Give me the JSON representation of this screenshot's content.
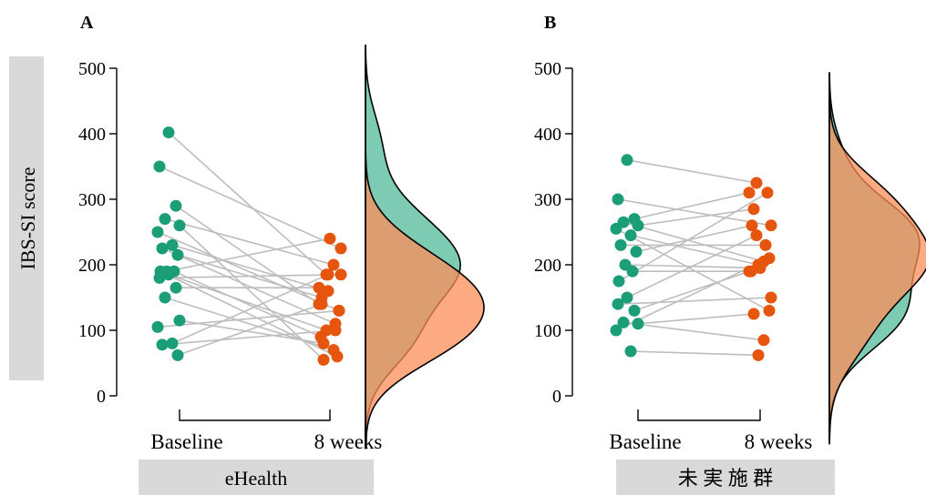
{
  "colors": {
    "baseline": "#1b9e77",
    "week8": "#e6550d",
    "line": "#bdbdbd",
    "density_baseline": "#66c2a5",
    "density_week8": "#fc8d59",
    "label_box": "#d9d9d9"
  },
  "ylabel": "IBS-SI score",
  "chart_data": [
    {
      "type": "scatter",
      "panel": "A",
      "group": "eHealth",
      "categories": [
        "Baseline",
        "8 weeks"
      ],
      "ylim": [
        0,
        500
      ],
      "yticks": [
        0,
        100,
        200,
        300,
        400,
        500
      ],
      "ylabel": "IBS-SI score",
      "series": [
        {
          "name": "Baseline",
          "values": [
            402,
            350,
            290,
            270,
            260,
            250,
            230,
            225,
            215,
            190,
            190,
            190,
            185,
            180,
            165,
            150,
            115,
            105,
            80,
            78,
            62
          ]
        },
        {
          "name": "8 weeks",
          "values": [
            185,
            225,
            140,
            200,
            55,
            130,
            160,
            110,
            150,
            240,
            90,
            60,
            100,
            185,
            165,
            70,
            80,
            130,
            185,
            100,
            140
          ]
        }
      ],
      "density": {
        "baseline_peak": 210,
        "week8_peak": 155
      }
    },
    {
      "type": "scatter",
      "panel": "B",
      "group": "未 実 施 群",
      "categories": [
        "Baseline",
        "8 weeks"
      ],
      "ylim": [
        0,
        500
      ],
      "yticks": [
        0,
        100,
        200,
        300,
        400,
        500
      ],
      "series": [
        {
          "name": "Baseline",
          "values": [
            360,
            300,
            270,
            265,
            260,
            255,
            245,
            230,
            220,
            200,
            190,
            175,
            150,
            140,
            130,
            112,
            110,
            100,
            68
          ]
        },
        {
          "name": "8 weeks",
          "values": [
            325,
            260,
            310,
            205,
            285,
            130,
            200,
            230,
            260,
            195,
            190,
            310,
            245,
            150,
            190,
            85,
            125,
            210,
            62
          ]
        }
      ],
      "density": {
        "baseline_peak": 245,
        "week8_peak": 245
      }
    }
  ]
}
